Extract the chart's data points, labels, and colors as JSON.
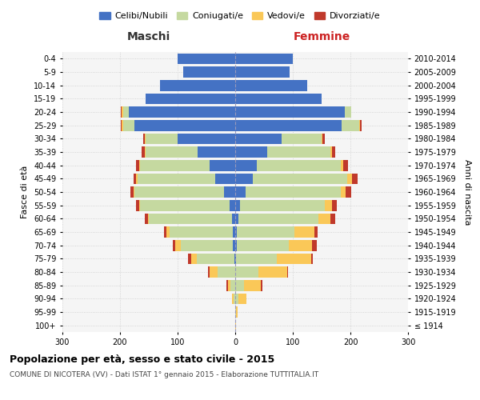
{
  "age_groups": [
    "100+",
    "95-99",
    "90-94",
    "85-89",
    "80-84",
    "75-79",
    "70-74",
    "65-69",
    "60-64",
    "55-59",
    "50-54",
    "45-49",
    "40-44",
    "35-39",
    "30-34",
    "25-29",
    "20-24",
    "15-19",
    "10-14",
    "5-9",
    "0-4"
  ],
  "birth_years": [
    "≤ 1914",
    "1915-1919",
    "1920-1924",
    "1925-1929",
    "1930-1934",
    "1935-1939",
    "1940-1944",
    "1945-1949",
    "1950-1954",
    "1955-1959",
    "1960-1964",
    "1965-1969",
    "1970-1974",
    "1975-1979",
    "1980-1984",
    "1985-1989",
    "1990-1994",
    "1995-1999",
    "2000-2004",
    "2005-2009",
    "2010-2014"
  ],
  "maschi_celibi": [
    0,
    0,
    0,
    0,
    0,
    2,
    4,
    4,
    5,
    10,
    20,
    35,
    45,
    65,
    100,
    175,
    185,
    155,
    130,
    90,
    100
  ],
  "maschi_coniugati": [
    0,
    0,
    3,
    8,
    30,
    65,
    90,
    110,
    145,
    155,
    155,
    135,
    120,
    90,
    55,
    20,
    10,
    0,
    0,
    0,
    0
  ],
  "maschi_vedovi": [
    0,
    0,
    2,
    5,
    15,
    10,
    10,
    5,
    2,
    2,
    2,
    2,
    2,
    2,
    2,
    2,
    2,
    0,
    0,
    0,
    0
  ],
  "maschi_divorziati": [
    0,
    0,
    0,
    2,
    2,
    5,
    5,
    5,
    5,
    5,
    5,
    5,
    5,
    5,
    3,
    2,
    2,
    0,
    0,
    0,
    0
  ],
  "femmine_celibi": [
    0,
    0,
    0,
    0,
    0,
    2,
    3,
    3,
    5,
    8,
    18,
    30,
    38,
    55,
    80,
    185,
    190,
    150,
    125,
    95,
    100
  ],
  "femmine_coniugati": [
    0,
    2,
    5,
    15,
    40,
    70,
    90,
    100,
    140,
    148,
    165,
    165,
    145,
    110,
    70,
    30,
    12,
    0,
    0,
    0,
    0
  ],
  "femmine_vedovi": [
    2,
    2,
    15,
    30,
    50,
    60,
    40,
    35,
    20,
    12,
    8,
    8,
    5,
    3,
    2,
    2,
    0,
    0,
    0,
    0,
    0
  ],
  "femmine_divorziati": [
    0,
    0,
    0,
    2,
    2,
    3,
    8,
    5,
    8,
    8,
    10,
    10,
    8,
    5,
    3,
    2,
    0,
    0,
    0,
    0,
    0
  ],
  "colors": {
    "celibi": "#4472C4",
    "coniugati": "#C5D9A0",
    "vedovi": "#FAC858",
    "divorziati": "#C0392B"
  },
  "legend_labels": [
    "Celibi/Nubili",
    "Coniugati/e",
    "Vedovi/e",
    "Divorziati/e"
  ],
  "xlim": 300,
  "title": "Popolazione per età, sesso e stato civile - 2015",
  "subtitle": "COMUNE DI NICOTERA (VV) - Dati ISTAT 1° gennaio 2015 - Elaborazione TUTTITALIA.IT",
  "ylabel_left": "Fasce di età",
  "ylabel_right": "Anni di nascita",
  "label_maschi": "Maschi",
  "label_femmine": "Femmine",
  "bg_color": "#f5f5f5",
  "grid_color": "#cccccc"
}
